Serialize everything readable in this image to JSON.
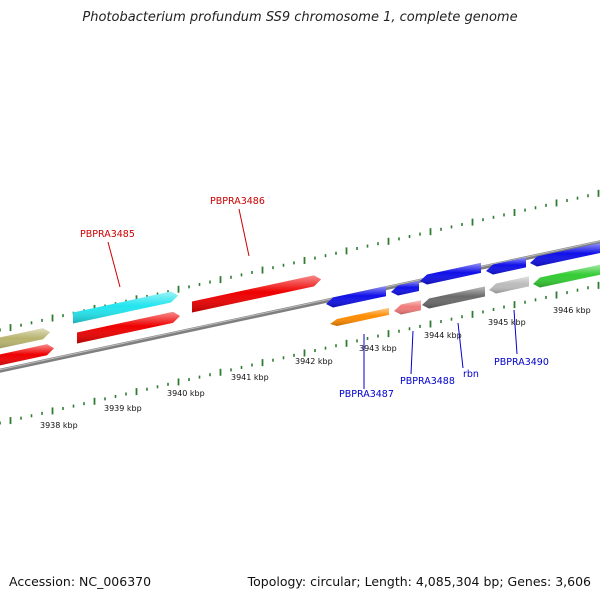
{
  "title": "Photobacterium profundum SS9 chromosome 1, complete genome",
  "footer": {
    "accession": "Accession: NC_006370",
    "summary": "Topology: circular; Length: 4,085,304 bp; Genes: 3,606"
  },
  "colors": {
    "forward_label": "#cc0000",
    "reverse_label": "#0000cc",
    "tick": "#2e7d32",
    "backbone": "#808080"
  },
  "kbp_labels": [
    "3938 kbp",
    "3939 kbp",
    "3940 kbp",
    "3941 kbp",
    "3942 kbp",
    "3943 kbp",
    "3944 kbp",
    "3945 kbp",
    "3946 kbp"
  ],
  "genes": [
    {
      "label": "",
      "color": "#b8b46e",
      "strand": "+"
    },
    {
      "label": "",
      "color": "#ee0000",
      "strand": "+"
    },
    {
      "label": "",
      "color": "#22e5ee",
      "strand": "+"
    },
    {
      "label": "PBPRA3485",
      "color": "#ee0000",
      "strand": "+"
    },
    {
      "label": "PBPRA3486",
      "color": "#ee0000",
      "strand": "+"
    },
    {
      "label": "",
      "color": "#1010e8",
      "strand": "-"
    },
    {
      "label": "PBPRA3487",
      "color": "#ff8c00",
      "strand": "-"
    },
    {
      "label": "",
      "color": "#1010e8",
      "strand": "-"
    },
    {
      "label": "PBPRA3488",
      "color": "#f07a7a",
      "strand": "-"
    },
    {
      "label": "",
      "color": "#1010e8",
      "strand": "-"
    },
    {
      "label": "rbn",
      "color": "#6a6a6a",
      "strand": "-"
    },
    {
      "label": "",
      "color": "#1010e8",
      "strand": "-"
    },
    {
      "label": "PBPRA3490",
      "color": "#bcbcbc",
      "strand": "-"
    },
    {
      "label": "",
      "color": "#1010e8",
      "strand": "-"
    },
    {
      "label": "",
      "color": "#33cc33",
      "strand": "-"
    }
  ]
}
